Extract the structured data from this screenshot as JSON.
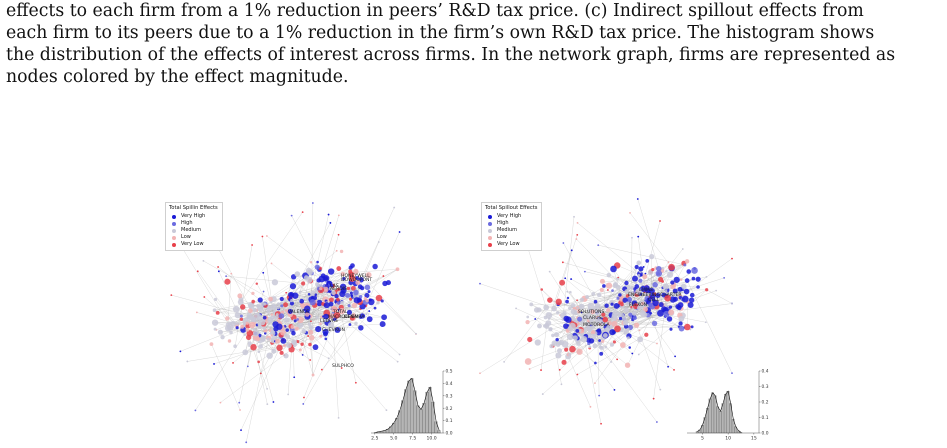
{
  "caption": {
    "lines": [
      "effects to each firm from a 1% reduction in peers’ R&D tax price. (c) Indirect spillout effects from",
      "each firm to its peers due to a 1% reduction in the firm’s own R&D tax price. The histogram shows",
      "the distribution of the effects of interest across firms. In the network graph, firms are represented as",
      "nodes colored by the effect magnitude."
    ]
  },
  "colors": {
    "very_high": "#1a1ad6",
    "high": "#6b6be0",
    "medium": "#c9c9d8",
    "low": "#f2b3b3",
    "very_low": "#e8404a",
    "edge": "#a8a8a8"
  },
  "panels": [
    {
      "legend": {
        "title": "Total Spillin Effects",
        "items": [
          "Very High",
          "High",
          "Medium",
          "Low",
          "Very Low"
        ]
      },
      "firm_labels": [
        "HONEYWELL",
        "DOWDUPONT",
        "LAS",
        "AERDIS",
        "VALENCE",
        "TOTAL",
        "MACROCHEM",
        "DENAIRA",
        "LEDVAS",
        "CHEVRON",
        "SULPHCO"
      ],
      "chart_data": {
        "type": "histogram",
        "title": "",
        "xlabel": "",
        "ylabel": "",
        "xlim": [
          2.0,
          11.5
        ],
        "ylim": [
          0,
          0.5
        ],
        "x_ticks": [
          "2.5",
          "5.0",
          "7.5",
          "10.0"
        ],
        "y_ticks": [
          "0.0",
          "0.1",
          "0.2",
          "0.3",
          "0.4",
          "0.5"
        ],
        "bins": [
          2.6,
          3.0,
          3.4,
          3.8,
          4.2,
          4.6,
          5.0,
          5.4,
          5.8,
          6.2,
          6.6,
          7.0,
          7.4,
          7.8,
          8.2,
          8.6,
          9.0,
          9.4,
          9.8,
          10.2,
          10.6,
          11.0
        ],
        "density": [
          0.005,
          0.01,
          0.015,
          0.02,
          0.03,
          0.05,
          0.08,
          0.12,
          0.18,
          0.26,
          0.35,
          0.42,
          0.44,
          0.34,
          0.22,
          0.19,
          0.24,
          0.33,
          0.37,
          0.25,
          0.09,
          0.02
        ]
      }
    },
    {
      "legend": {
        "title": "Total Spillout Effects",
        "items": [
          "Very High",
          "High",
          "Medium",
          "Low",
          "Very Low"
        ]
      },
      "firm_labels": [
        "EMMS",
        "ENGINEERING",
        "CHARTER",
        "CELL",
        "FLEXON",
        "SOLUTIONS",
        "CLARUS",
        "MOTOROLA"
      ],
      "chart_data": {
        "type": "histogram",
        "title": "",
        "xlabel": "",
        "ylabel": "",
        "xlim": [
          2.0,
          16.0
        ],
        "ylim": [
          0,
          0.4
        ],
        "x_ticks": [
          "5",
          "10",
          "15"
        ],
        "y_ticks": [
          "0.0",
          "0.1",
          "0.2",
          "0.3",
          "0.4"
        ],
        "bins": [
          4.0,
          4.5,
          5.0,
          5.5,
          6.0,
          6.5,
          7.0,
          7.5,
          8.0,
          8.5,
          9.0,
          9.5,
          10.0,
          10.5,
          11.0,
          11.5,
          12.0,
          12.5
        ],
        "density": [
          0.01,
          0.02,
          0.05,
          0.1,
          0.16,
          0.22,
          0.26,
          0.24,
          0.17,
          0.14,
          0.19,
          0.25,
          0.27,
          0.19,
          0.09,
          0.04,
          0.015,
          0.005
        ]
      }
    }
  ]
}
